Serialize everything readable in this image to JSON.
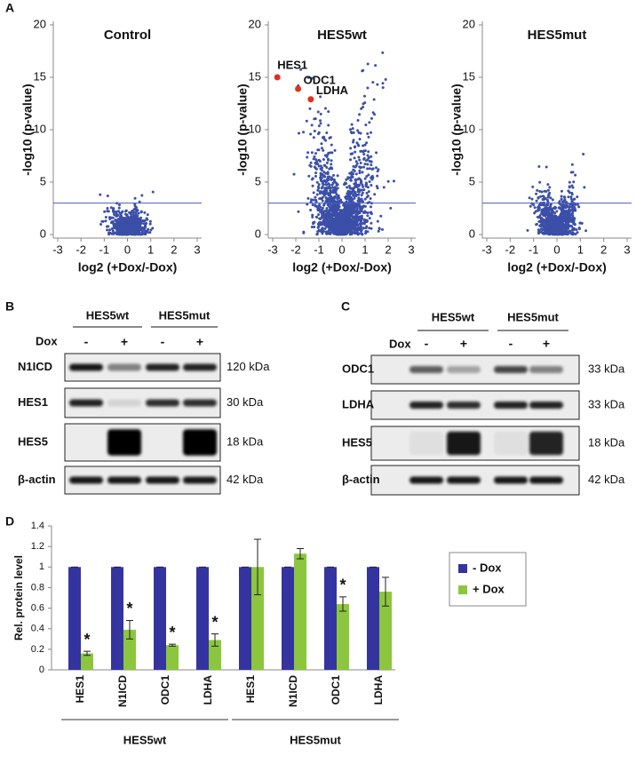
{
  "panel_labels": [
    "A",
    "B",
    "C",
    "D"
  ],
  "chart_data": [
    {
      "type": "scatter",
      "title": "Control",
      "xlabel": "log2 (+Dox/-Dox)",
      "ylabel": "-log10 (p-value)",
      "xlim": [
        -3,
        3
      ],
      "xticks": [
        -3,
        -2,
        -1,
        0,
        1,
        2,
        3
      ],
      "ylim": [
        0,
        20
      ],
      "yticks": [
        0,
        5,
        10,
        15,
        20
      ],
      "threshold": 3,
      "color": "#3b4fa8",
      "threshold_color": "#4a5cc0"
    },
    {
      "type": "scatter",
      "title": "HES5wt",
      "xlabel": "log2 (+Dox/-Dox)",
      "ylabel": "-log10 (p-value)",
      "xlim": [
        -3,
        3
      ],
      "xticks": [
        -3,
        -2,
        -1,
        0,
        1,
        2,
        3
      ],
      "ylim": [
        0,
        20
      ],
      "yticks": [
        0,
        5,
        10,
        15,
        20
      ],
      "threshold": 3,
      "color": "#3b4fa8",
      "threshold_color": "#4a5cc0",
      "highlight": {
        "color": "#e0301e",
        "names": [
          "HES1",
          "ODC1",
          "LDHA"
        ],
        "x": [
          -2.8,
          -1.9,
          -1.35
        ],
        "y": [
          15,
          13.9,
          12.9
        ]
      }
    },
    {
      "type": "scatter",
      "title": "HES5mut",
      "xlabel": "log2 (+Dox/-Dox)",
      "ylabel": "-log10 (p-value)",
      "xlim": [
        -3,
        3
      ],
      "xticks": [
        -3,
        -2,
        -1,
        0,
        1,
        2,
        3
      ],
      "ylim": [
        0,
        20
      ],
      "yticks": [
        0,
        5,
        10,
        15,
        20
      ],
      "threshold": 3,
      "color": "#3b4fa8",
      "threshold_color": "#4a5cc0"
    },
    {
      "type": "bar",
      "ylabel": "Rel. protein level",
      "categories": [
        "HES1",
        "N1ICD",
        "ODC1",
        "LDHA",
        "HES1",
        "N1ICD",
        "ODC1",
        "LDHA"
      ],
      "groups": [
        {
          "label": "HES5wt",
          "size": 4
        },
        {
          "label": "HES5mut",
          "size": 4
        }
      ],
      "series": [
        {
          "name": "- Dox",
          "color": "#3434a0",
          "values": [
            1,
            1,
            1,
            1,
            1,
            1,
            1,
            1
          ]
        },
        {
          "name": "+ Dox",
          "color": "#8cc63f",
          "values": [
            0.16,
            0.39,
            0.24,
            0.29,
            1.0,
            1.13,
            0.64,
            0.76
          ],
          "errors": [
            0.02,
            0.09,
            0.01,
            0.06,
            0.27,
            0.05,
            0.07,
            0.14
          ],
          "significance": [
            "*",
            "*",
            "*",
            "*",
            null,
            null,
            "*",
            null
          ]
        }
      ],
      "ylim": [
        0,
        1.4
      ],
      "yticks": [
        0,
        0.2,
        0.4,
        0.6,
        0.8,
        1,
        1.2,
        1.4
      ],
      "legend": "right"
    }
  ],
  "blots": [
    {
      "groups": [
        "HES5wt",
        "HES5mut"
      ],
      "treatment": "Dox",
      "lanes": [
        "-",
        "+",
        "-",
        "+"
      ],
      "rows": [
        {
          "protein": "N1ICD",
          "size": "120 kDa"
        },
        {
          "protein": "HES1",
          "size": "30 kDa"
        },
        {
          "protein": "HES5",
          "size": "18 kDa"
        },
        {
          "protein": "β-actin",
          "size": "42 kDa"
        }
      ]
    },
    {
      "groups": [
        "HES5wt",
        "HES5mut"
      ],
      "treatment": "Dox",
      "lanes": [
        "-",
        "+",
        "-",
        "+"
      ],
      "rows": [
        {
          "protein": "ODC1",
          "size": "33 kDa"
        },
        {
          "protein": "LDHA",
          "size": "33 kDa"
        },
        {
          "protein": "HES5",
          "size": "18 kDa"
        },
        {
          "protein": "β-actin",
          "size": "42 kDa"
        }
      ]
    }
  ]
}
